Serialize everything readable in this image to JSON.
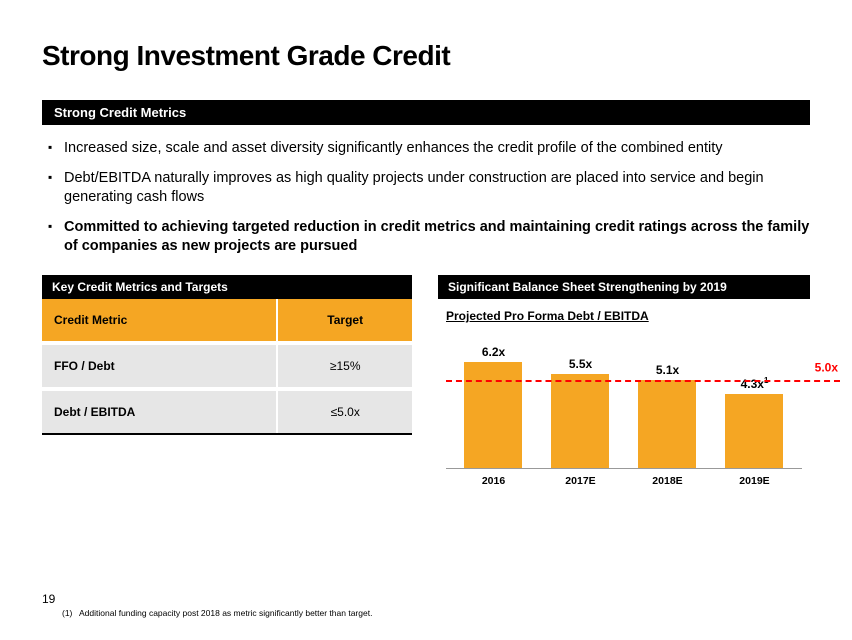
{
  "title": "Strong Investment Grade Credit",
  "section1": {
    "heading": "Strong Credit Metrics",
    "bullets": [
      {
        "text": "Increased size, scale and asset diversity significantly enhances the credit profile of the combined entity",
        "bold": false
      },
      {
        "text": "Debt/EBITDA naturally improves as high quality projects under construction are placed into service and begin generating cash flows",
        "bold": false
      },
      {
        "text": "Committed to achieving targeted reduction in credit metrics and maintaining credit ratings across the family of companies as new projects are pursued",
        "bold": true
      }
    ]
  },
  "metrics_table": {
    "heading": "Key Credit Metrics and Targets",
    "columns": [
      "Credit Metric",
      "Target"
    ],
    "rows": [
      [
        "FFO / Debt",
        "≥15%"
      ],
      [
        "Debt / EBITDA",
        "≤5.0x"
      ]
    ],
    "header_bg": "#f5a623",
    "row_bg": "#e6e6e6"
  },
  "chart": {
    "heading": "Significant Balance Sheet Strengthening by 2019",
    "subtitle": "Projected Pro Forma Debt / EBITDA",
    "type": "bar",
    "categories": [
      "2016",
      "2017E",
      "2018E",
      "2019E"
    ],
    "values": [
      6.2,
      5.5,
      5.1,
      4.3
    ],
    "value_labels": [
      "6.2x",
      "5.5x",
      "5.1x",
      "4.3x"
    ],
    "value_label_sup": [
      "",
      "",
      "",
      "1"
    ],
    "bar_color": "#f5a623",
    "y_max": 7.0,
    "reference_line": {
      "value": 5.0,
      "label": "5.0x",
      "color": "#ff0000"
    },
    "axis_color": "#999999",
    "label_fontsize": 12,
    "xlabel_fontsize": 10.5
  },
  "footer": {
    "page": "19",
    "footnote_num": "(1)",
    "footnote_text": "Additional funding capacity post 2018 as metric significantly better than target."
  },
  "colors": {
    "accent": "#f5a623",
    "black": "#000000",
    "gray": "#e6e6e6",
    "red": "#ff0000"
  }
}
